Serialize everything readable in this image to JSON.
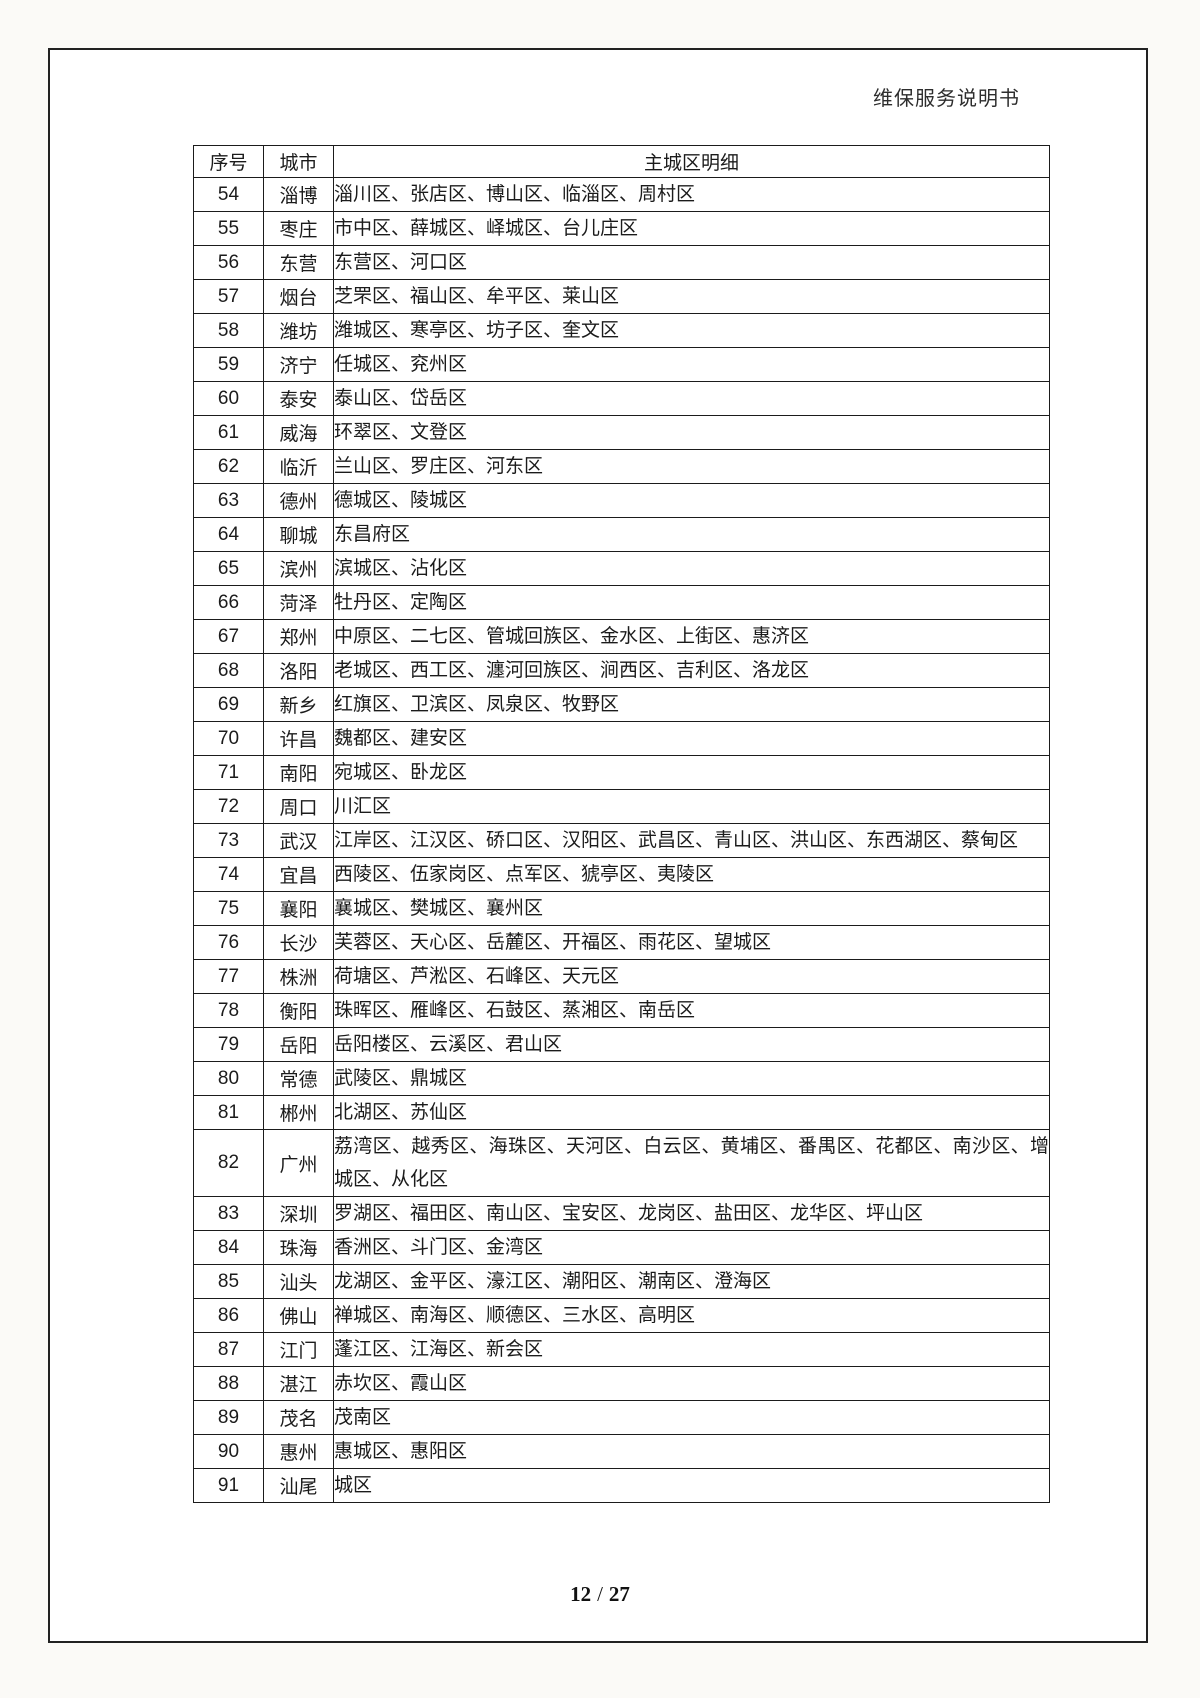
{
  "header": {
    "title": "维保服务说明书"
  },
  "table": {
    "columns": [
      "序号",
      "城市",
      "主城区明细"
    ],
    "rows": [
      {
        "no": "54",
        "city": "淄博",
        "districts": "淄川区、张店区、博山区、临淄区、周村区"
      },
      {
        "no": "55",
        "city": "枣庄",
        "districts": "市中区、薛城区、峄城区、台儿庄区"
      },
      {
        "no": "56",
        "city": "东营",
        "districts": "东营区、河口区"
      },
      {
        "no": "57",
        "city": "烟台",
        "districts": "芝罘区、福山区、牟平区、莱山区"
      },
      {
        "no": "58",
        "city": "潍坊",
        "districts": "潍城区、寒亭区、坊子区、奎文区"
      },
      {
        "no": "59",
        "city": "济宁",
        "districts": "任城区、兖州区"
      },
      {
        "no": "60",
        "city": "泰安",
        "districts": "泰山区、岱岳区"
      },
      {
        "no": "61",
        "city": "威海",
        "districts": "环翠区、文登区"
      },
      {
        "no": "62",
        "city": "临沂",
        "districts": "兰山区、罗庄区、河东区"
      },
      {
        "no": "63",
        "city": "德州",
        "districts": "德城区、陵城区"
      },
      {
        "no": "64",
        "city": "聊城",
        "districts": "东昌府区"
      },
      {
        "no": "65",
        "city": "滨州",
        "districts": "滨城区、沾化区"
      },
      {
        "no": "66",
        "city": "菏泽",
        "districts": "牡丹区、定陶区"
      },
      {
        "no": "67",
        "city": "郑州",
        "districts": "中原区、二七区、管城回族区、金水区、上街区、惠济区"
      },
      {
        "no": "68",
        "city": "洛阳",
        "districts": "老城区、西工区、瀍河回族区、涧西区、吉利区、洛龙区"
      },
      {
        "no": "69",
        "city": "新乡",
        "districts": "红旗区、卫滨区、凤泉区、牧野区"
      },
      {
        "no": "70",
        "city": "许昌",
        "districts": "魏都区、建安区"
      },
      {
        "no": "71",
        "city": "南阳",
        "districts": "宛城区、卧龙区"
      },
      {
        "no": "72",
        "city": "周口",
        "districts": "川汇区"
      },
      {
        "no": "73",
        "city": "武汉",
        "districts": "江岸区、江汉区、硚口区、汉阳区、武昌区、青山区、洪山区、东西湖区、蔡甸区"
      },
      {
        "no": "74",
        "city": "宜昌",
        "districts": "西陵区、伍家岗区、点军区、猇亭区、夷陵区"
      },
      {
        "no": "75",
        "city": "襄阳",
        "districts": "襄城区、樊城区、襄州区"
      },
      {
        "no": "76",
        "city": "长沙",
        "districts": "芙蓉区、天心区、岳麓区、开福区、雨花区、望城区"
      },
      {
        "no": "77",
        "city": "株洲",
        "districts": "荷塘区、芦淞区、石峰区、天元区"
      },
      {
        "no": "78",
        "city": "衡阳",
        "districts": "珠晖区、雁峰区、石鼓区、蒸湘区、南岳区"
      },
      {
        "no": "79",
        "city": "岳阳",
        "districts": "岳阳楼区、云溪区、君山区"
      },
      {
        "no": "80",
        "city": "常德",
        "districts": "武陵区、鼎城区"
      },
      {
        "no": "81",
        "city": "郴州",
        "districts": "北湖区、苏仙区"
      },
      {
        "no": "82",
        "city": "广州",
        "districts": "荔湾区、越秀区、海珠区、天河区、白云区、黄埔区、番禺区、花都区、南沙区、增城区、从化区"
      },
      {
        "no": "83",
        "city": "深圳",
        "districts": "罗湖区、福田区、南山区、宝安区、龙岗区、盐田区、龙华区、坪山区"
      },
      {
        "no": "84",
        "city": "珠海",
        "districts": "香洲区、斗门区、金湾区"
      },
      {
        "no": "85",
        "city": "汕头",
        "districts": "龙湖区、金平区、濠江区、潮阳区、潮南区、澄海区"
      },
      {
        "no": "86",
        "city": "佛山",
        "districts": "禅城区、南海区、顺德区、三水区、高明区"
      },
      {
        "no": "87",
        "city": "江门",
        "districts": "蓬江区、江海区、新会区"
      },
      {
        "no": "88",
        "city": "湛江",
        "districts": "赤坎区、霞山区"
      },
      {
        "no": "89",
        "city": "茂名",
        "districts": "茂南区"
      },
      {
        "no": "90",
        "city": "惠州",
        "districts": "惠城区、惠阳区"
      },
      {
        "no": "91",
        "city": "汕尾",
        "districts": "城区"
      }
    ]
  },
  "footer": {
    "page": "12",
    "separator": "/",
    "total": "27"
  }
}
